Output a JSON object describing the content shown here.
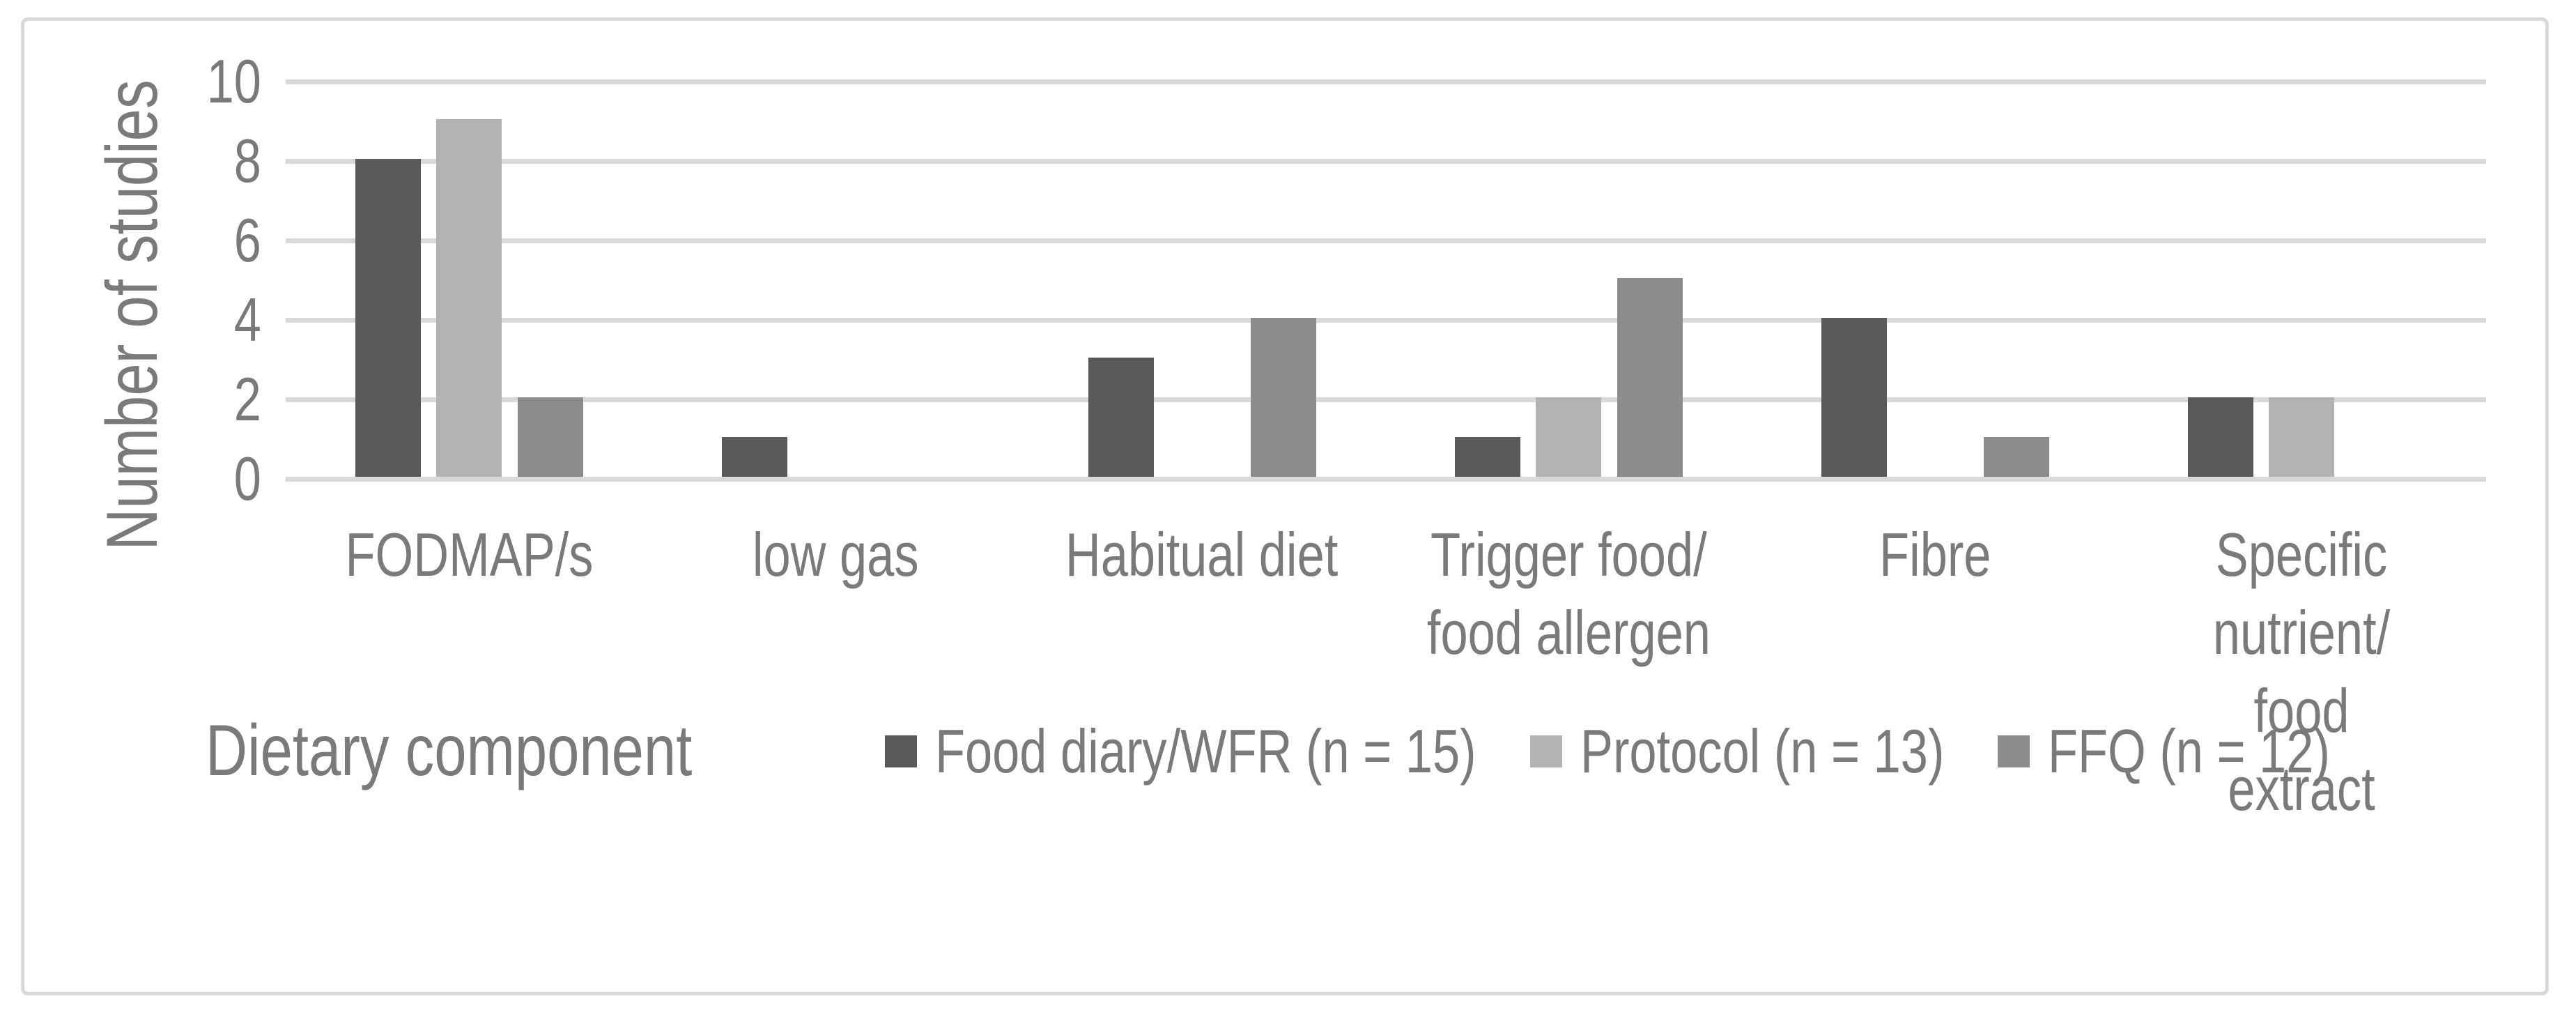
{
  "figure": {
    "y_axis_title": "Number of studies",
    "x_axis_title": "Dietary component"
  },
  "colors": {
    "gridline": "#d9d9d9",
    "border": "#d9d9d9",
    "text": "#7a7a7a"
  },
  "chart_data": {
    "type": "bar",
    "title": "",
    "xlabel": "Dietary component",
    "ylabel": "Number of studies",
    "categories": [
      "FODMAP/s",
      "low gas",
      "Habitual diet",
      "Trigger food/\nfood allergen",
      "Fibre",
      "Specific\nnutrient/ food\nextract"
    ],
    "series": [
      {
        "name": "Food diary/WFR (n = 15)",
        "color": "#595959",
        "values": [
          8,
          1,
          3,
          1,
          4,
          2
        ]
      },
      {
        "name": "Protocol (n = 13)",
        "color": "#b3b3b3",
        "values": [
          9,
          0,
          0,
          2,
          0,
          2
        ]
      },
      {
        "name": "FFQ (n = 12)",
        "color": "#8c8c8c",
        "values": [
          2,
          0,
          4,
          5,
          1,
          0
        ]
      }
    ],
    "ylim": [
      0,
      10
    ],
    "yticks": [
      0,
      2,
      4,
      6,
      8,
      10
    ],
    "grid": "horizontal-only",
    "legend_position": "bottom"
  }
}
